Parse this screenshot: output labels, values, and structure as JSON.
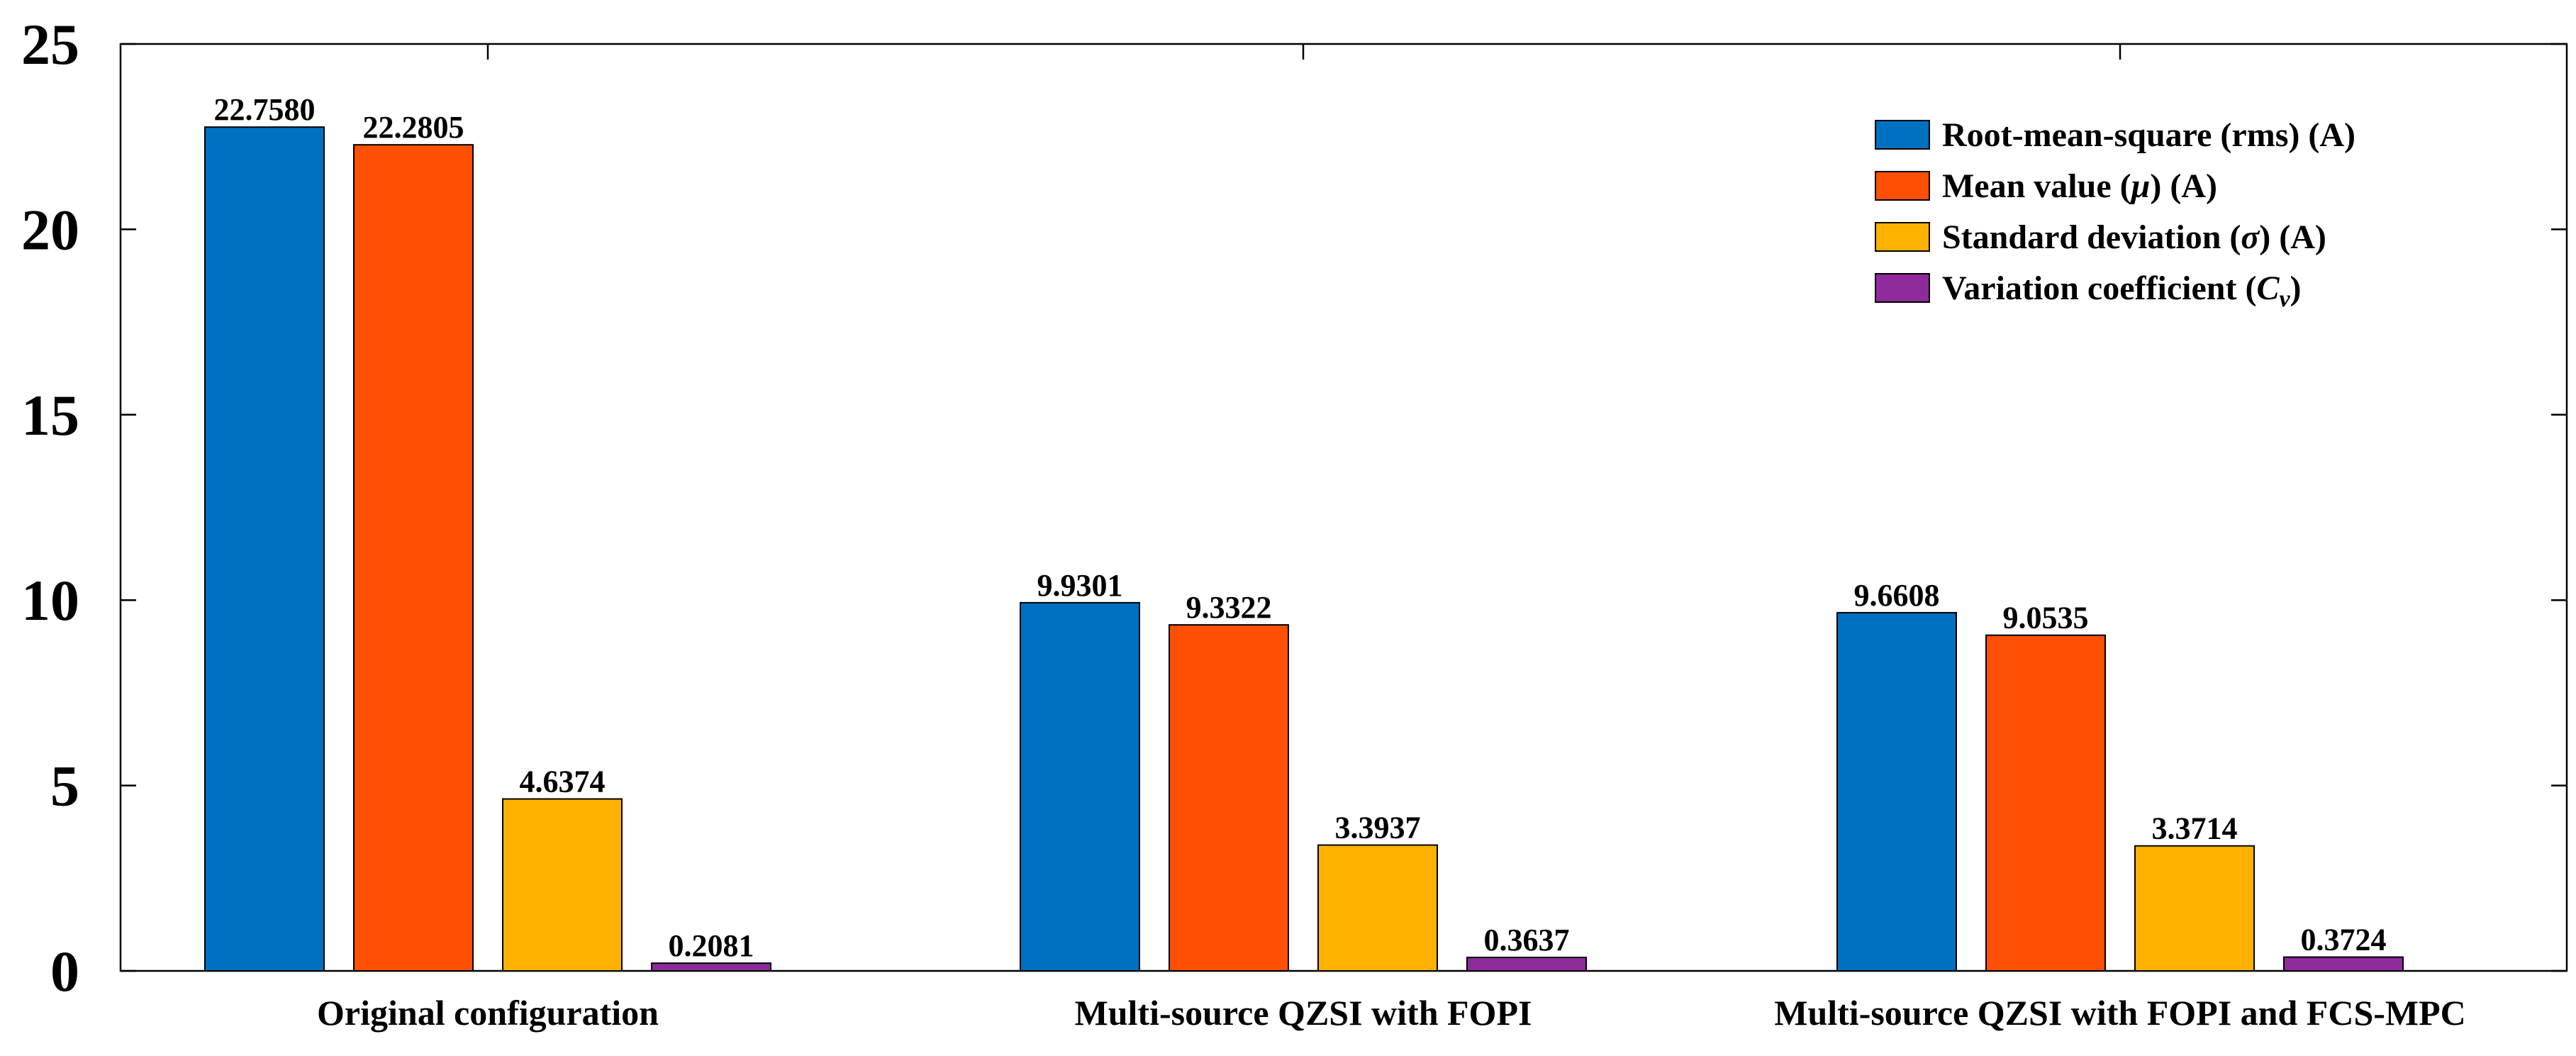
{
  "chart_data": {
    "type": "bar",
    "categories": [
      "Original configuration",
      "Multi-source QZSI with FOPI",
      "Multi-source QZSI with FOPI and FCS-MPC"
    ],
    "series": [
      {
        "name": "Root-mean-square (rms) (A)",
        "color": "#0070C0",
        "values": [
          22.758,
          9.9301,
          9.6608
        ],
        "labels": [
          "22.7580",
          "9.9301",
          "9.6608"
        ]
      },
      {
        "name": "Mean value (μ) (A)",
        "color": "#FF5005",
        "values": [
          22.2805,
          9.3322,
          9.0535
        ],
        "labels": [
          "22.2805",
          "9.3322",
          "9.0535"
        ]
      },
      {
        "name": "Standard deviation (σ) (A)",
        "color": "#FFB100",
        "values": [
          4.6374,
          3.3937,
          3.3714
        ],
        "labels": [
          "4.6374",
          "3.3937",
          "3.3714"
        ]
      },
      {
        "name": "Variation coefficient (Cv)",
        "color": "#8E2A9A",
        "values": [
          0.2081,
          0.3637,
          0.3724
        ],
        "labels": [
          "0.2081",
          "0.3637",
          "0.3724"
        ]
      }
    ],
    "legend_parts": [
      {
        "pre": "Root-mean-square (rms) (A)",
        "sym": "",
        "sub": "",
        "post": ""
      },
      {
        "pre": "Mean value (",
        "sym": "μ",
        "sub": "",
        "post": ") (A)"
      },
      {
        "pre": "Standard deviation (",
        "sym": "σ",
        "sub": "",
        "post": ") (A)"
      },
      {
        "pre": "Variation coefficient (",
        "sym": "C",
        "sub": "v",
        "post": ")"
      }
    ],
    "yticks": [
      "0",
      "5",
      "10",
      "15",
      "20",
      "25"
    ],
    "ylim": [
      0,
      25
    ],
    "grid": false,
    "legend": "top-right"
  }
}
